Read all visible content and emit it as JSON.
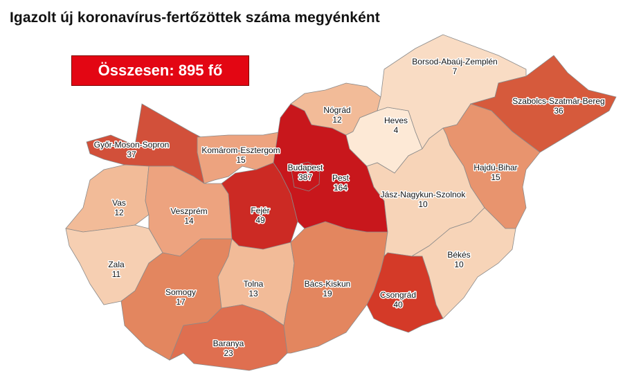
{
  "title": "Igazolt új koronavírus-fertőzöttek száma megyénként",
  "total_label": "Összesen: 895 fő",
  "total_color": "#e30613",
  "counties": [
    {
      "name": "Győr-Moson-Sopron",
      "value": "37",
      "color": "#d2503a"
    },
    {
      "name": "Komárom-Esztergom",
      "value": "15",
      "color": "#eda37f"
    },
    {
      "name": "Vas",
      "value": "12",
      "color": "#f2bb98"
    },
    {
      "name": "Veszprém",
      "value": "14",
      "color": "#eda37f"
    },
    {
      "name": "Zala",
      "value": "11",
      "color": "#f6cfb2"
    },
    {
      "name": "Somogy",
      "value": "17",
      "color": "#e3865f"
    },
    {
      "name": "Fejér",
      "value": "49",
      "color": "#cc2a24"
    },
    {
      "name": "Tolna",
      "value": "13",
      "color": "#f2bb98"
    },
    {
      "name": "Baranya",
      "value": "23",
      "color": "#df6f50"
    },
    {
      "name": "Bács-Kiskun",
      "value": "19",
      "color": "#e3865f"
    },
    {
      "name": "Pest",
      "value": "164",
      "color": "#c8171c"
    },
    {
      "name": "Budapest",
      "value": "387",
      "color": "#c8171c"
    },
    {
      "name": "Nógrád",
      "value": "12",
      "color": "#f2bb98"
    },
    {
      "name": "Heves",
      "value": "4",
      "color": "#fde9d6"
    },
    {
      "name": "Borsod-Abaúj-Zemplén",
      "value": "7",
      "color": "#f9dcc4"
    },
    {
      "name": "Szabolcs-Szatmár-Bereg",
      "value": "36",
      "color": "#d65a3c"
    },
    {
      "name": "Hajdú-Bihar",
      "value": "15",
      "color": "#e8946e"
    },
    {
      "name": "Jász-Nagykun-Szolnok",
      "value": "10",
      "color": "#f7d4b8"
    },
    {
      "name": "Békés",
      "value": "10",
      "color": "#f7d4b8"
    },
    {
      "name": "Csongrád",
      "value": "40",
      "color": "#d43a28"
    }
  ]
}
